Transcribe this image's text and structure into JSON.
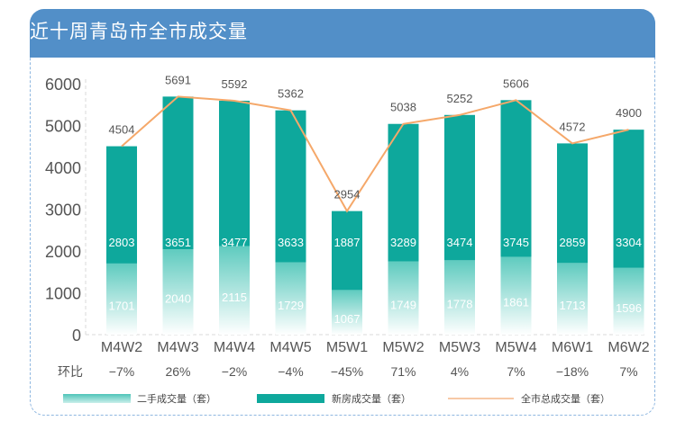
{
  "header": {
    "title": "近十周青岛市全市成交量"
  },
  "colors": {
    "header": "#528fc8",
    "new": "#0ea89c",
    "second": "#5fcbbf",
    "line": "#f5a86a"
  },
  "chart_data": {
    "type": "bar",
    "title": "近十周青岛市全市成交量",
    "categories": [
      "M4W2",
      "M4W3",
      "M4W4",
      "M4W5",
      "M5W1",
      "M5W2",
      "M5W3",
      "M5W4",
      "M6W1",
      "M6W2"
    ],
    "series": [
      {
        "name": "二手成交量（套）",
        "type": "bar-stacked",
        "values": [
          1701,
          2040,
          2115,
          1729,
          1067,
          1749,
          1778,
          1861,
          1713,
          1596
        ]
      },
      {
        "name": "新房成交量（套）",
        "type": "bar-stacked",
        "values": [
          2803,
          3651,
          3477,
          3633,
          1887,
          3289,
          3474,
          3745,
          2859,
          3304
        ]
      },
      {
        "name": "全市总成交量（套）",
        "type": "line",
        "values": [
          4504,
          5691,
          5592,
          5362,
          2954,
          5038,
          5252,
          5606,
          4572,
          4900
        ]
      }
    ],
    "mom_label": "环比",
    "mom": [
      "-7%",
      "26%",
      "-2%",
      "-4%",
      "-45%",
      "71%",
      "4%",
      "7%",
      "-18%",
      "7%"
    ],
    "yticks": [
      0,
      1000,
      2000,
      3000,
      4000,
      5000,
      6000
    ],
    "ylim": [
      0,
      6000
    ],
    "xlabel": "",
    "ylabel": "",
    "legend": "bottom"
  }
}
